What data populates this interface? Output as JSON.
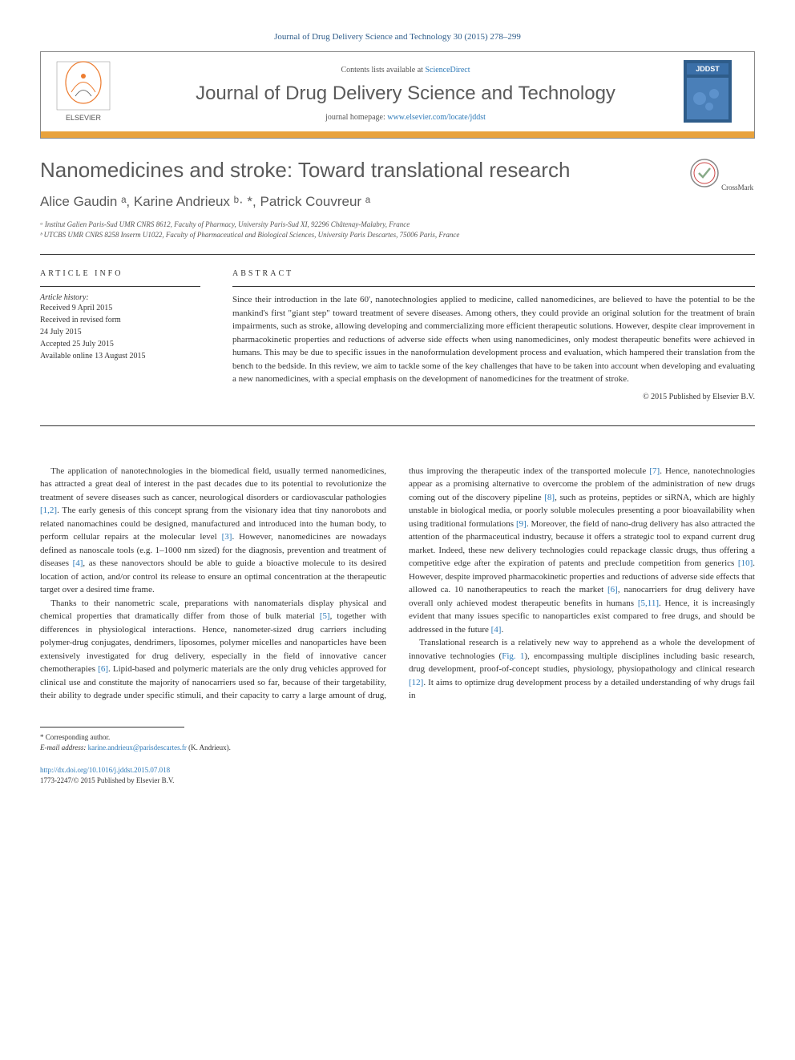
{
  "citation": "Journal of Drug Delivery Science and Technology 30 (2015) 278–299",
  "header": {
    "contents_prefix": "Contents lists available at ",
    "contents_link": "ScienceDirect",
    "journal_name": "Journal of Drug Delivery Science and Technology",
    "homepage_prefix": "journal homepage: ",
    "homepage_link": "www.elsevier.com/locate/jddst",
    "publisher": "ELSEVIER",
    "cover_label": "JDDST"
  },
  "colors": {
    "orange_bar": "#e8a23c",
    "link": "#2e7ab8",
    "elsevier_orange": "#ed7d31",
    "cover_blue": "#2e5c8a"
  },
  "title": "Nanomedicines and stroke: Toward translational research",
  "authors": "Alice Gaudin ᵃ, Karine Andrieux ᵇ· *, Patrick Couvreur ᵃ",
  "crossmark_label": "CrossMark",
  "affiliations": {
    "a": "ᵃ Institut Galien Paris-Sud UMR CNRS 8612, Faculty of Pharmacy, University Paris-Sud XI, 92296 Châtenay-Malabry, France",
    "b": "ᵇ UTCBS UMR CNRS 8258 Inserm U1022, Faculty of Pharmaceutical and Biological Sciences, University Paris Descartes, 75006 Paris, France"
  },
  "article_info": {
    "label": "ARTICLE INFO",
    "history_label": "Article history:",
    "received": "Received 9 April 2015",
    "revised_label": "Received in revised form",
    "revised_date": "24 July 2015",
    "accepted": "Accepted 25 July 2015",
    "online": "Available online 13 August 2015"
  },
  "abstract": {
    "label": "ABSTRACT",
    "text": "Since their introduction in the late 60', nanotechnologies applied to medicine, called nanomedicines, are believed to have the potential to be the mankind's first \"giant step\" toward treatment of severe diseases. Among others, they could provide an original solution for the treatment of brain impairments, such as stroke, allowing developing and commercializing more efficient therapeutic solutions. However, despite clear improvement in pharmacokinetic properties and reductions of adverse side effects when using nanomedicines, only modest therapeutic benefits were achieved in humans. This may be due to specific issues in the nanoformulation development process and evaluation, which hampered their translation from the bench to the bedside. In this review, we aim to tackle some of the key challenges that have to be taken into account when developing and evaluating a new nanomedicines, with a special emphasis on the development of nanomedicines for the treatment of stroke.",
    "copyright": "© 2015 Published by Elsevier B.V."
  },
  "body": {
    "p1": "The application of nanotechnologies in the biomedical field, usually termed nanomedicines, has attracted a great deal of interest in the past decades due to its potential to revolutionize the treatment of severe diseases such as cancer, neurological disorders or cardiovascular pathologies [1,2]. The early genesis of this concept sprang from the visionary idea that tiny nanorobots and related nanomachines could be designed, manufactured and introduced into the human body, to perform cellular repairs at the molecular level [3]. However, nanomedicines are nowadays defined as nanoscale tools (e.g. 1–1000 nm sized) for the diagnosis, prevention and treatment of diseases [4], as these nanovectors should be able to guide a bioactive molecule to its desired location of action, and/or control its release to ensure an optimal concentration at the therapeutic target over a desired time frame.",
    "p2": "Thanks to their nanometric scale, preparations with nanomaterials display physical and chemical properties that dramatically differ from those of bulk material [5], together with differences in physiological interactions. Hence, nanometer-sized drug carriers including polymer-drug conjugates, dendrimers, liposomes, polymer micelles and nanoparticles have been extensively investigated for drug delivery, especially in the field of innovative cancer chemotherapies [6]. Lipid-based and polymeric materials are the only drug vehicles approved for clinical use and constitute the majority of nanocarriers used so far, because of their targetability, their ability to degrade under specific stimuli, and their capacity to carry a large amount of drug, thus improving the therapeutic index of the transported molecule [7]. Hence, nanotechnologies appear as a promising alternative to overcome the problem of the administration of new drugs coming out of the discovery pipeline [8], such as proteins, peptides or siRNA, which are highly unstable in biological media, or poorly soluble molecules presenting a poor bioavailability when using traditional formulations [9]. Moreover, the field of nano-drug delivery has also attracted the attention of the pharmaceutical industry, because it offers a strategic tool to expand current drug market. Indeed, these new delivery technologies could repackage classic drugs, thus offering a competitive edge after the expiration of patents and preclude competition from generics [10]. However, despite improved pharmacokinetic properties and reductions of adverse side effects that allowed ca. 10 nanotherapeutics to reach the market [6], nanocarriers for drug delivery have overall only achieved modest therapeutic benefits in humans [5,11]. Hence, it is increasingly evident that many issues specific to nanoparticles exist compared to free drugs, and should be addressed in the future [4].",
    "p3": "Translational research is a relatively new way to apprehend as a whole the development of innovative technologies (Fig. 1), encompassing multiple disciplines including basic research, drug development, proof-of-concept studies, physiology, physiopathology and clinical research [12]. It aims to optimize drug development process by a detailed understanding of why drugs fail in"
  },
  "footer": {
    "corresponding_label": "* Corresponding author.",
    "email_label": "E-mail address: ",
    "email": "karine.andrieux@parisdescartes.fr",
    "email_suffix": " (K. Andrieux).",
    "doi_link": "http://dx.doi.org/10.1016/j.jddst.2015.07.018",
    "issn_line": "1773-2247/© 2015 Published by Elsevier B.V."
  }
}
